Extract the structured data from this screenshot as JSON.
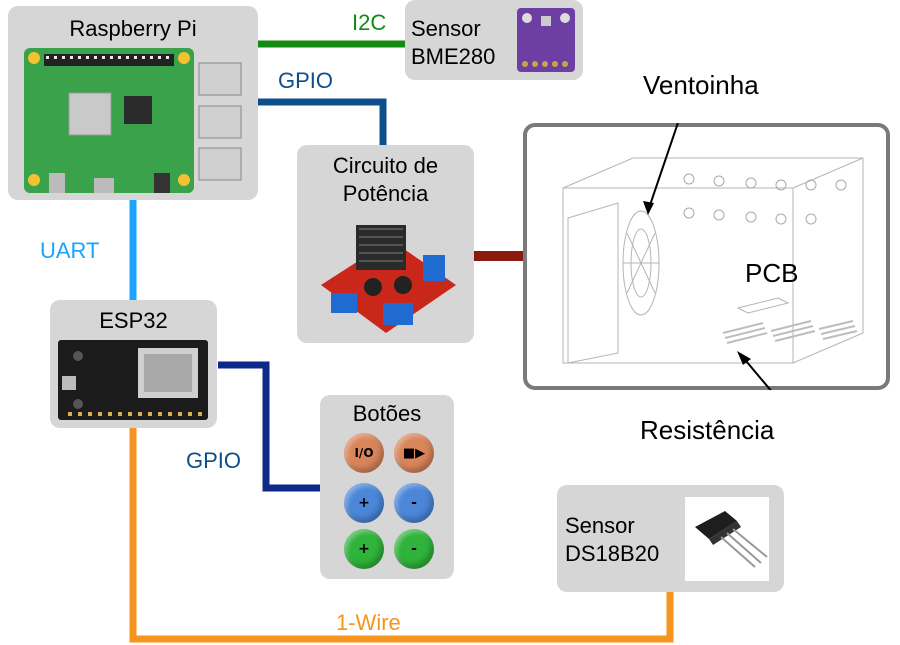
{
  "raspberry": {
    "title": "Raspberry Pi"
  },
  "bme280": {
    "line1": "Sensor",
    "line2": "BME280",
    "chip_text": "BME280"
  },
  "power": {
    "line1": "Circuito de",
    "line2": "Potência"
  },
  "esp32": {
    "title": "ESP32"
  },
  "buttons": {
    "title": "Botões",
    "items": [
      {
        "label": "I/O",
        "color": "#d9855a"
      },
      {
        "label": "■▶",
        "color": "#d9855a"
      },
      {
        "label": "+",
        "color": "#4b86d8"
      },
      {
        "label": "-",
        "color": "#4b86d8"
      },
      {
        "label": "+",
        "color": "#2fb33a"
      },
      {
        "label": "-",
        "color": "#2fb33a"
      }
    ]
  },
  "ds18b20": {
    "line1": "Sensor",
    "line2": "DS18B20"
  },
  "connections": {
    "i2c": {
      "label": "I2C",
      "color": "#138a13"
    },
    "gpio_top": {
      "label": "GPIO",
      "color": "#0d4f8b"
    },
    "uart": {
      "label": "UART",
      "color": "#1aa3ff"
    },
    "gpio_bottom": {
      "label": "GPIO",
      "color": "#0d2a8a"
    },
    "onewire": {
      "label": "1-Wire",
      "color": "#f7941d"
    },
    "power_link": {
      "color": "#8b1a0e"
    }
  },
  "enclosure": {
    "fan_label": "Ventoinha",
    "pcb_label": "PCB",
    "heater_label": "Resistência"
  }
}
